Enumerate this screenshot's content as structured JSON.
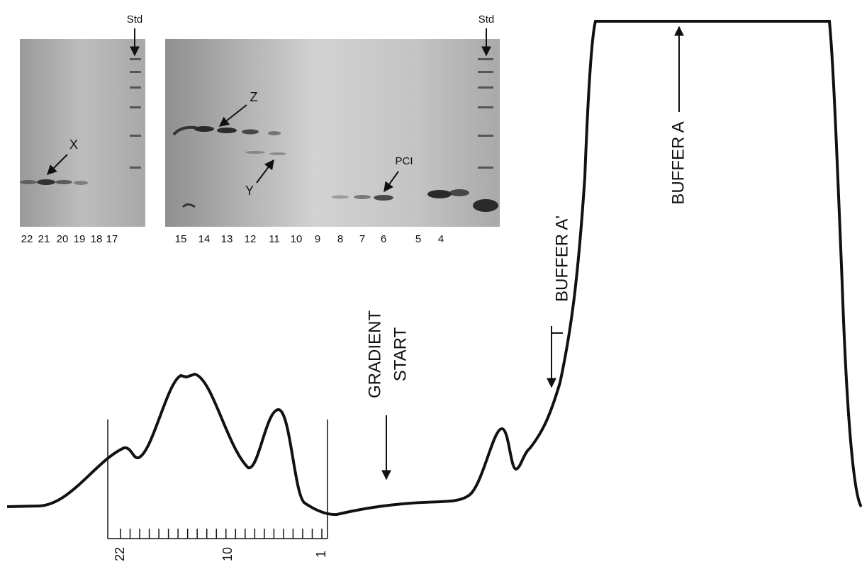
{
  "gels": [
    {
      "std_label": "Std",
      "lanes": [
        "22",
        "21",
        "20",
        "19",
        "18",
        "17"
      ],
      "band_labels": [
        "X"
      ]
    },
    {
      "std_label": "Std",
      "lanes": [
        "15",
        "14",
        "13",
        "12",
        "11",
        "10",
        "9",
        "8",
        "7",
        "6",
        "5",
        "4"
      ],
      "band_labels": [
        "Z",
        "Y",
        "PCI"
      ]
    }
  ],
  "annotations": {
    "gradient_start": [
      "GRADIENT",
      "START"
    ],
    "buffer_a_prime": "BUFFER A'",
    "buffer_a": "BUFFER A"
  },
  "fraction_scale": {
    "labels": [
      "22",
      "10",
      "1"
    ]
  }
}
